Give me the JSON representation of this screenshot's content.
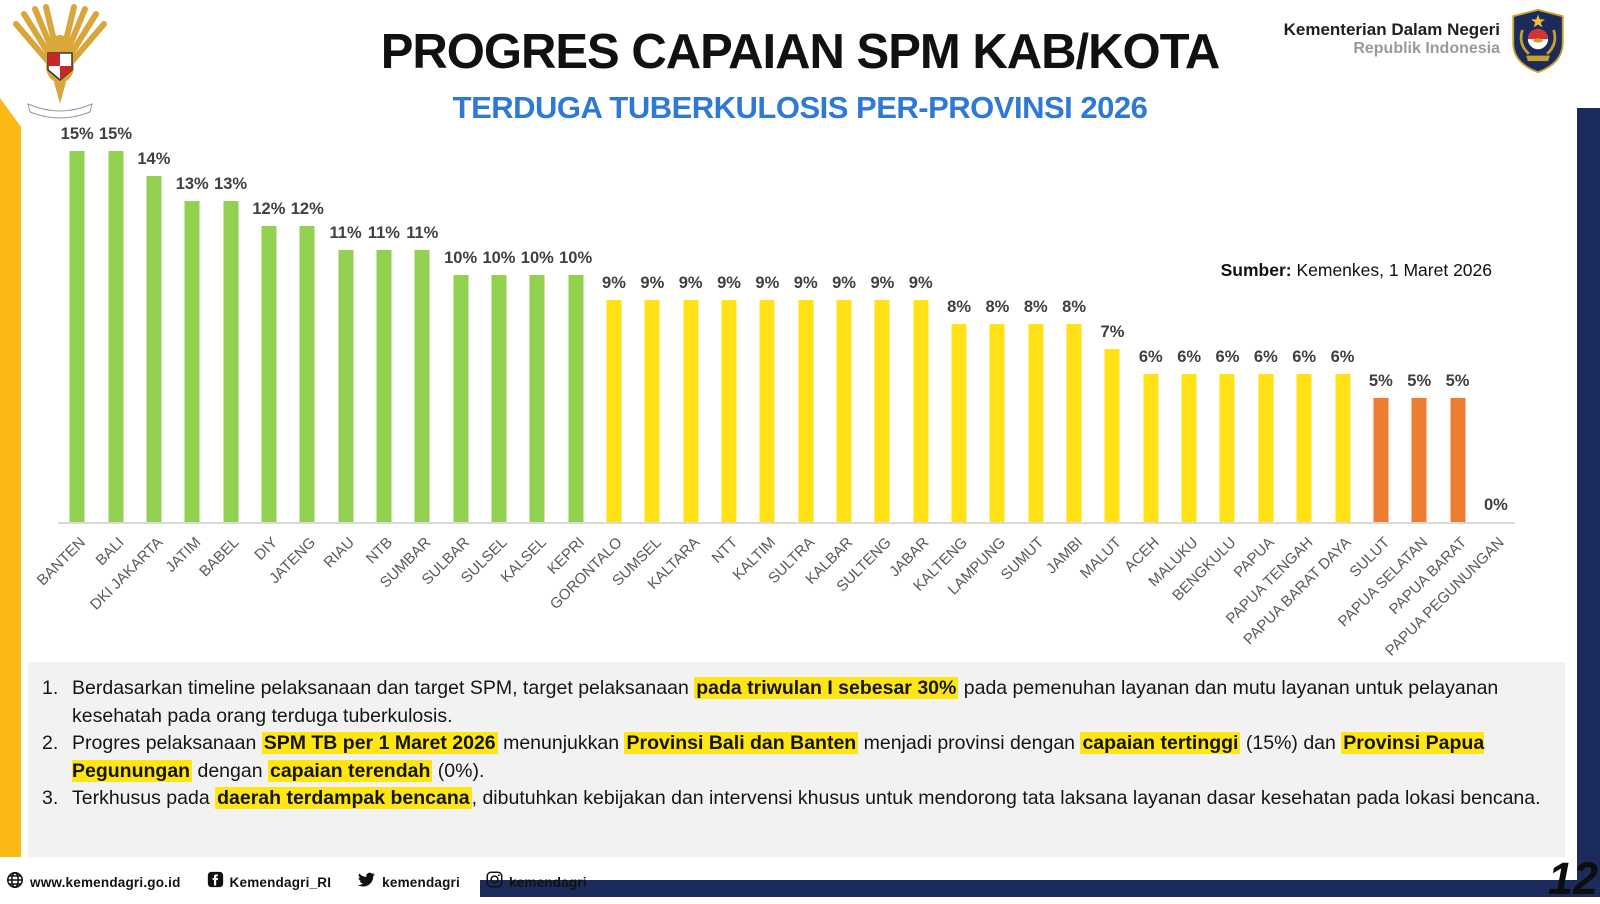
{
  "header": {
    "title": "PROGRES CAPAIAN SPM KAB/KOTA",
    "subtitle": "TERDUGA TUBERKULOSIS PER-PROVINSI 2026",
    "ministry_name": "Kementerian Dalam Negeri",
    "ministry_sub": "Republik Indonesia"
  },
  "source": {
    "lbl": "Sumber:",
    "text": " Kemenkes, 1 Maret 2026"
  },
  "chart_data": {
    "type": "bar",
    "title": "TERDUGA TUBERKULOSIS PER-PROVINSI 2026",
    "categories": [
      "BANTEN",
      "BALI",
      "DKI JAKARTA",
      "JATIM",
      "BABEL",
      "DIY",
      "JATENG",
      "RIAU",
      "NTB",
      "SUMBAR",
      "SULBAR",
      "SULSEL",
      "KALSEL",
      "KEPRI",
      "GORONTALO",
      "SUMSEL",
      "KALTARA",
      "NTT",
      "KALTIM",
      "SULTRA",
      "KALBAR",
      "SULTENG",
      "JABAR",
      "KALTENG",
      "LAMPUNG",
      "SUMUT",
      "JAMBI",
      "MALUT",
      "ACEH",
      "MALUKU",
      "BENGKULU",
      "PAPUA",
      "PAPUA TENGAH",
      "PAPUA BARAT DAYA",
      "SULUT",
      "PAPUA SELATAN",
      "PAPUA BARAT",
      "PAPUA PEGUNUNGAN"
    ],
    "values": [
      15,
      15,
      14,
      13,
      13,
      12,
      12,
      11,
      11,
      11,
      10,
      10,
      10,
      10,
      9,
      9,
      9,
      9,
      9,
      9,
      9,
      9,
      9,
      8,
      8,
      8,
      8,
      7,
      6,
      6,
      6,
      6,
      6,
      6,
      5,
      5,
      5,
      0
    ],
    "data_label_format": "percent",
    "ylim": [
      0,
      15
    ],
    "grid": false,
    "legend": "none",
    "colors": {
      "high": "#92D050",
      "mid": "#FFE115",
      "low": "#ED7D31"
    },
    "color_rules": [
      {
        "min": 10,
        "key": "high"
      },
      {
        "min": 6,
        "key": "mid"
      },
      {
        "min": 1,
        "key": "low"
      }
    ]
  },
  "notes": [
    {
      "number": "1.",
      "segments": [
        {
          "text": "Berdasarkan timeline pelaksanaan dan target SPM, target pelaksanaan ",
          "hl": false
        },
        {
          "text": "pada triwulan I sebesar 30%",
          "hl": true
        },
        {
          "text": " pada pemenuhan layanan dan mutu layanan untuk pelayanan kesehatah pada orang terduga tuberkulosis.",
          "hl": false
        }
      ]
    },
    {
      "number": "2.",
      "segments": [
        {
          "text": "Progres pelaksanaan ",
          "hl": false
        },
        {
          "text": "SPM TB per 1 Maret 2026",
          "hl": true
        },
        {
          "text": " menunjukkan ",
          "hl": false
        },
        {
          "text": "Provinsi Bali dan Banten",
          "hl": true
        },
        {
          "text": " menjadi provinsi dengan ",
          "hl": false
        },
        {
          "text": "capaian tertinggi",
          "hl": true
        },
        {
          "text": " (15%) dan ",
          "hl": false
        },
        {
          "text": "Provinsi Papua Pegunungan",
          "hl": true
        },
        {
          "text": " dengan ",
          "hl": false
        },
        {
          "text": "capaian terendah",
          "hl": true
        },
        {
          "text": " (0%).",
          "hl": false
        }
      ]
    },
    {
      "number": "3.",
      "segments": [
        {
          "text": "Terkhusus pada ",
          "hl": false
        },
        {
          "text": "daerah terdampak bencana",
          "hl": true
        },
        {
          "text": ", dibutuhkan kebijakan dan intervensi khusus untuk mendorong tata laksana layanan dasar kesehatan pada lokasi bencana.",
          "hl": false
        }
      ]
    }
  ],
  "footer": {
    "website": "www.kemendagri.go.id",
    "facebook": "Kemendagri_RI",
    "twitter": "kemendagri",
    "instagram": "kemendagri",
    "page_number": "12"
  }
}
